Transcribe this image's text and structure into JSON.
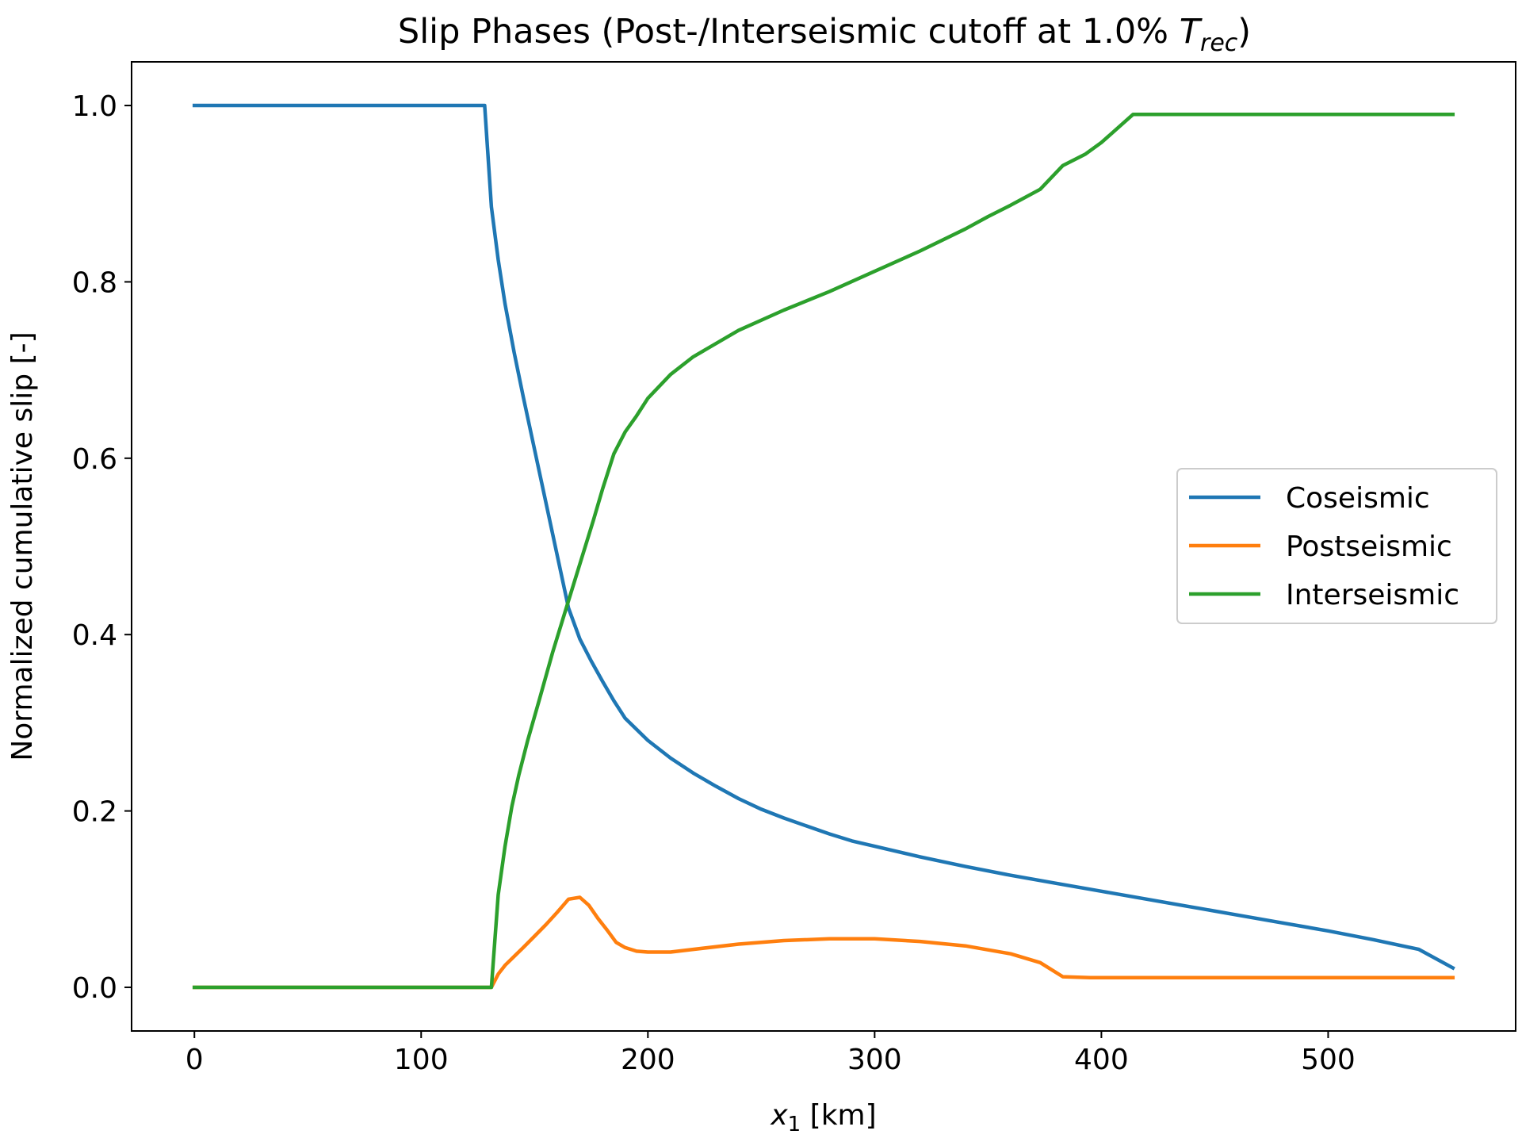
{
  "chart_data": {
    "type": "line",
    "title": "Slip Phases (Post-/Interseismic cutoff at 1.0% ",
    "title_math": {
      "base": "T",
      "subscript": "rec"
    },
    "title_close": ")",
    "xlabel": {
      "var": "x",
      "subscript": "1",
      "unit": " [km]"
    },
    "ylabel": "Normalized cumulative slip [-]",
    "xlim": [
      -27.7,
      582.7
    ],
    "ylim": [
      -0.0495,
      1.0495
    ],
    "xticks": [
      0,
      100,
      200,
      300,
      400,
      500
    ],
    "xtick_labels": [
      "0",
      "100",
      "200",
      "300",
      "400",
      "500"
    ],
    "yticks": [
      0.0,
      0.2,
      0.4,
      0.6,
      0.8,
      1.0
    ],
    "ytick_labels": [
      "0.0",
      "0.2",
      "0.4",
      "0.6",
      "0.8",
      "1.0"
    ],
    "grid": false,
    "legend_position": "center-right",
    "series": [
      {
        "name": "Coseismic",
        "color": "#1f77b4",
        "x": [
          0,
          128,
          131,
          134,
          137,
          141,
          145,
          150,
          155,
          160,
          165,
          170,
          175,
          180,
          185,
          190,
          200,
          210,
          220,
          230,
          240,
          250,
          260,
          270,
          280,
          290,
          300,
          320,
          340,
          360,
          380,
          400,
          420,
          440,
          460,
          480,
          500,
          520,
          540,
          555
        ],
        "values": [
          1.0,
          1.0,
          0.885,
          0.825,
          0.775,
          0.72,
          0.67,
          0.61,
          0.55,
          0.49,
          0.43,
          0.395,
          0.37,
          0.347,
          0.325,
          0.305,
          0.28,
          0.26,
          0.243,
          0.228,
          0.214,
          0.202,
          0.192,
          0.183,
          0.174,
          0.166,
          0.16,
          0.148,
          0.137,
          0.127,
          0.118,
          0.109,
          0.1,
          0.091,
          0.082,
          0.073,
          0.064,
          0.054,
          0.043,
          0.022
        ]
      },
      {
        "name": "Postseismic",
        "color": "#ff7f0e",
        "x": [
          0,
          131,
          134,
          137,
          141,
          145,
          150,
          155,
          160,
          165,
          170,
          174,
          178,
          182,
          186,
          190,
          195,
          200,
          210,
          220,
          240,
          260,
          280,
          300,
          320,
          340,
          360,
          373,
          383,
          395,
          410,
          450,
          500,
          555
        ],
        "values": [
          0.0,
          0.0,
          0.015,
          0.025,
          0.035,
          0.045,
          0.058,
          0.071,
          0.085,
          0.1,
          0.102,
          0.093,
          0.078,
          0.065,
          0.051,
          0.045,
          0.041,
          0.04,
          0.04,
          0.043,
          0.049,
          0.053,
          0.055,
          0.055,
          0.052,
          0.047,
          0.038,
          0.028,
          0.012,
          0.011,
          0.011,
          0.011,
          0.011,
          0.011
        ]
      },
      {
        "name": "Interseismic",
        "color": "#2ca02c",
        "x": [
          0,
          131,
          134,
          137,
          140,
          143,
          147,
          152,
          158,
          164,
          170,
          176,
          180,
          185,
          190,
          195,
          200,
          210,
          220,
          240,
          260,
          280,
          300,
          320,
          340,
          350,
          360,
          373,
          383,
          393,
          400,
          414,
          450,
          500,
          555
        ],
        "values": [
          0.0,
          0.0,
          0.105,
          0.16,
          0.205,
          0.24,
          0.28,
          0.325,
          0.38,
          0.43,
          0.48,
          0.53,
          0.565,
          0.605,
          0.63,
          0.648,
          0.668,
          0.695,
          0.715,
          0.745,
          0.768,
          0.789,
          0.812,
          0.835,
          0.86,
          0.874,
          0.887,
          0.905,
          0.932,
          0.945,
          0.958,
          0.99,
          0.99,
          0.99,
          0.99
        ]
      }
    ]
  }
}
